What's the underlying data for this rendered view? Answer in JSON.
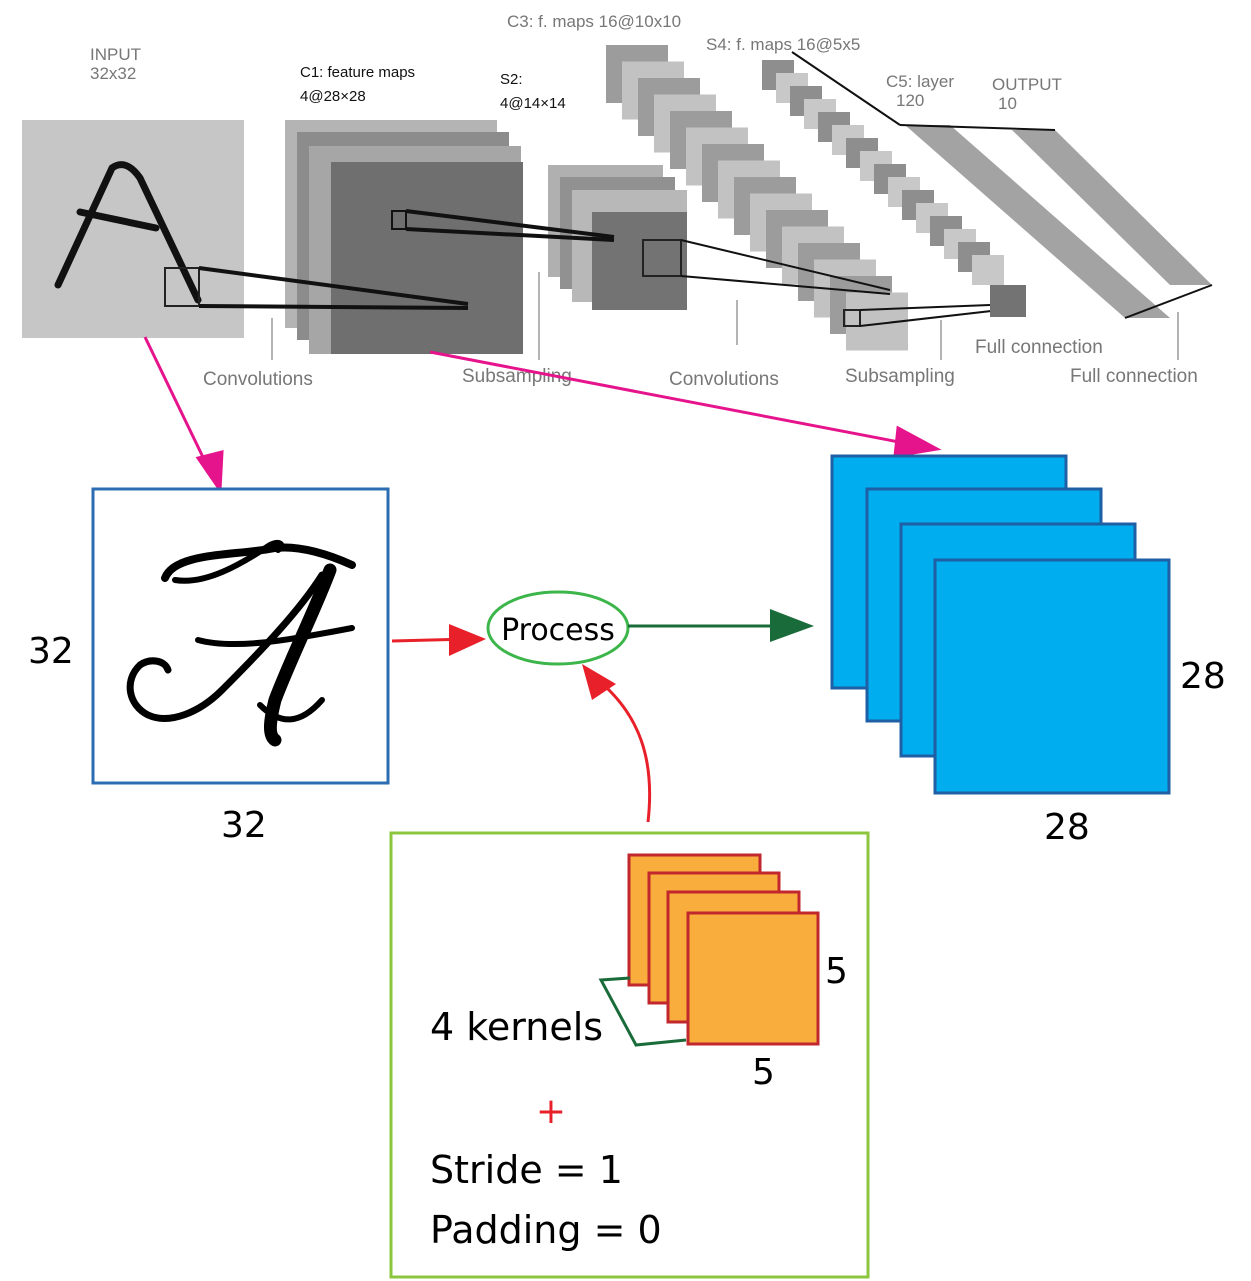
{
  "lenet": {
    "input_title": "INPUT",
    "input_size": "32x32",
    "c1_title": "C1: feature maps",
    "c1_size": "4@28×28",
    "s2_title": "S2:",
    "s2_size": "4@14×14",
    "c3_label": "C3: f. maps 16@10x10",
    "s4_label": "S4: f. maps 16@5x5",
    "c5_title": "C5: layer",
    "c5_size": "120",
    "output_title": "OUTPUT",
    "output_size": "10",
    "ops": {
      "conv1": "Convolutions",
      "sub1": "Subsampling",
      "conv2": "Convolutions",
      "sub2": "Subsampling",
      "full1": "Full connection",
      "full2": "Full connection"
    }
  },
  "detail": {
    "input_height": "32",
    "input_width": "32",
    "process_label": "Process",
    "output_height": "28",
    "output_width": "28",
    "kernels_label": "4 kernels",
    "kernel_height": "5",
    "kernel_width": "5",
    "plus": "+",
    "stride": "Stride = 1",
    "padding": "Padding = 0"
  },
  "colors": {
    "magenta_arrow": "#e6148c",
    "red_arrow": "#e8202a",
    "green_arrow": "#1a6b3a",
    "map_blue": "#00aeef",
    "map_border": "#1f5fa5",
    "kernel_fill": "#f9ad3c",
    "kernel_border": "#c1272d",
    "input_box_border": "#2b6db3",
    "process_ellipse": "#3cb54a",
    "params_box_border": "#8cc63f"
  }
}
